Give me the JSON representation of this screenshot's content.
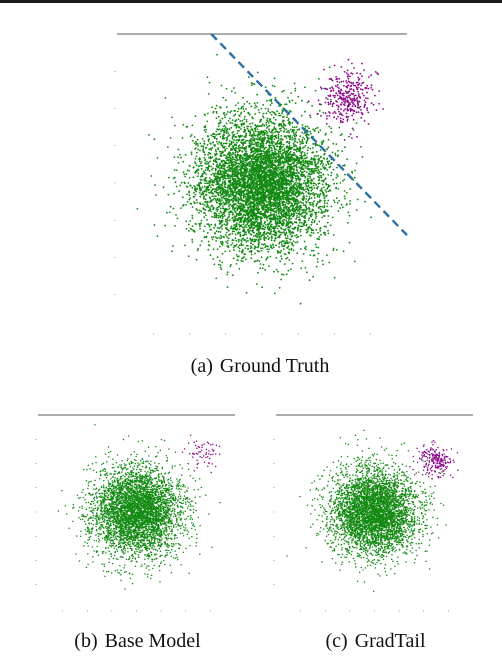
{
  "figure": {
    "captions": {
      "a": {
        "label": "(a)",
        "text": "Ground Truth"
      },
      "b": {
        "label": "(b)",
        "text": "Base Model"
      },
      "c": {
        "label": "(c)",
        "text": "GradTail"
      }
    }
  },
  "chart_data": [
    {
      "id": "a",
      "type": "scatter",
      "title": "",
      "xlabel": "",
      "ylabel": "",
      "xlim": [
        -4,
        4
      ],
      "ylim": [
        -4,
        4
      ],
      "grid": false,
      "series": [
        {
          "color": "#138a13",
          "distribution": "gaussian",
          "center": [
            0,
            0
          ],
          "std": [
            0.9,
            0.9
          ],
          "count": 6000
        },
        {
          "color": "#8b0a8b",
          "distribution": "gaussian",
          "center": [
            2.4,
            2.3
          ],
          "std": [
            0.38,
            0.38
          ],
          "count": 320
        }
      ],
      "boundary": {
        "style": "dashed",
        "color": "#2e6fa5",
        "x": [
          -1.4,
          4.0
        ],
        "y": [
          4.0,
          -1.4
        ]
      }
    },
    {
      "id": "b",
      "type": "scatter",
      "title": "",
      "xlabel": "",
      "ylabel": "",
      "xlim": [
        -4,
        4
      ],
      "ylim": [
        -4,
        4
      ],
      "grid": false,
      "series": [
        {
          "color": "#138a13",
          "distribution": "gaussian",
          "center": [
            0,
            0
          ],
          "std": [
            0.9,
            0.9
          ],
          "count": 4200
        },
        {
          "color": "#8b0a8b",
          "distribution": "gaussian",
          "center": [
            2.7,
            2.4
          ],
          "std": [
            0.35,
            0.3
          ],
          "count": 60
        }
      ]
    },
    {
      "id": "c",
      "type": "scatter",
      "title": "",
      "xlabel": "",
      "ylabel": "",
      "xlim": [
        -4,
        4
      ],
      "ylim": [
        -4,
        4
      ],
      "grid": false,
      "series": [
        {
          "color": "#138a13",
          "distribution": "gaussian",
          "center": [
            0,
            0
          ],
          "std": [
            0.9,
            0.9
          ],
          "count": 4200
        },
        {
          "color": "#8b0a8b",
          "distribution": "gaussian",
          "center": [
            2.5,
            2.1
          ],
          "std": [
            0.32,
            0.3
          ],
          "count": 220
        }
      ]
    }
  ]
}
